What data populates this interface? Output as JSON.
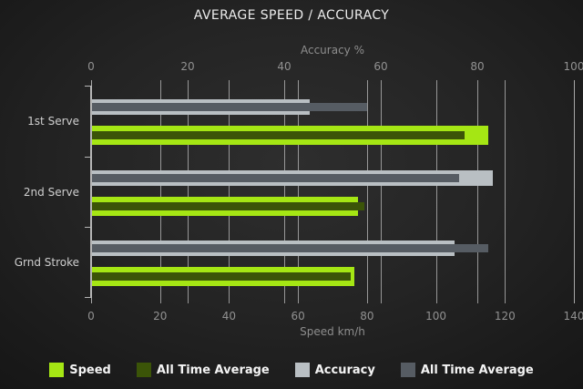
{
  "title": "AVERAGE SPEED / ACCURACY",
  "chart_data": {
    "type": "bar",
    "orientation": "horizontal",
    "title": "AVERAGE SPEED / ACCURACY",
    "categories": [
      "1st Serve",
      "2nd Serve",
      "Grnd Stroke"
    ],
    "axes": {
      "top": {
        "label": "Accuracy %",
        "min": 0,
        "max": 100,
        "ticks": [
          0,
          20,
          40,
          60,
          80,
          100
        ]
      },
      "bottom": {
        "label": "Speed km/h",
        "min": 0,
        "max": 140,
        "ticks": [
          0,
          20,
          40,
          60,
          80,
          100,
          120,
          140
        ]
      }
    },
    "grid": true,
    "legend_position": "bottom",
    "series": [
      {
        "key": "speed",
        "name": "Speed",
        "axis": "bottom",
        "color": "#a5e614",
        "values": [
          115,
          77,
          76
        ]
      },
      {
        "key": "speed_avg",
        "name": "All Time Average",
        "axis": "bottom",
        "color": "#3b5408",
        "values": [
          108,
          79,
          75
        ]
      },
      {
        "key": "accuracy",
        "name": "Accuracy",
        "axis": "top",
        "color": "#b9bfc3",
        "values": [
          45,
          83,
          75
        ]
      },
      {
        "key": "accuracy_avg",
        "name": "All Time Average",
        "axis": "top",
        "color": "#565c63",
        "values": [
          57,
          76,
          82
        ]
      }
    ],
    "colors": {
      "background_center": "#2e2e2e",
      "background_edge": "#141414",
      "gridline": "#acacac",
      "axis_text": "#8d8d8d",
      "category_text": "#cfcfcf",
      "title_text": "#ececec",
      "legend_text": "#f4f4f4"
    }
  }
}
